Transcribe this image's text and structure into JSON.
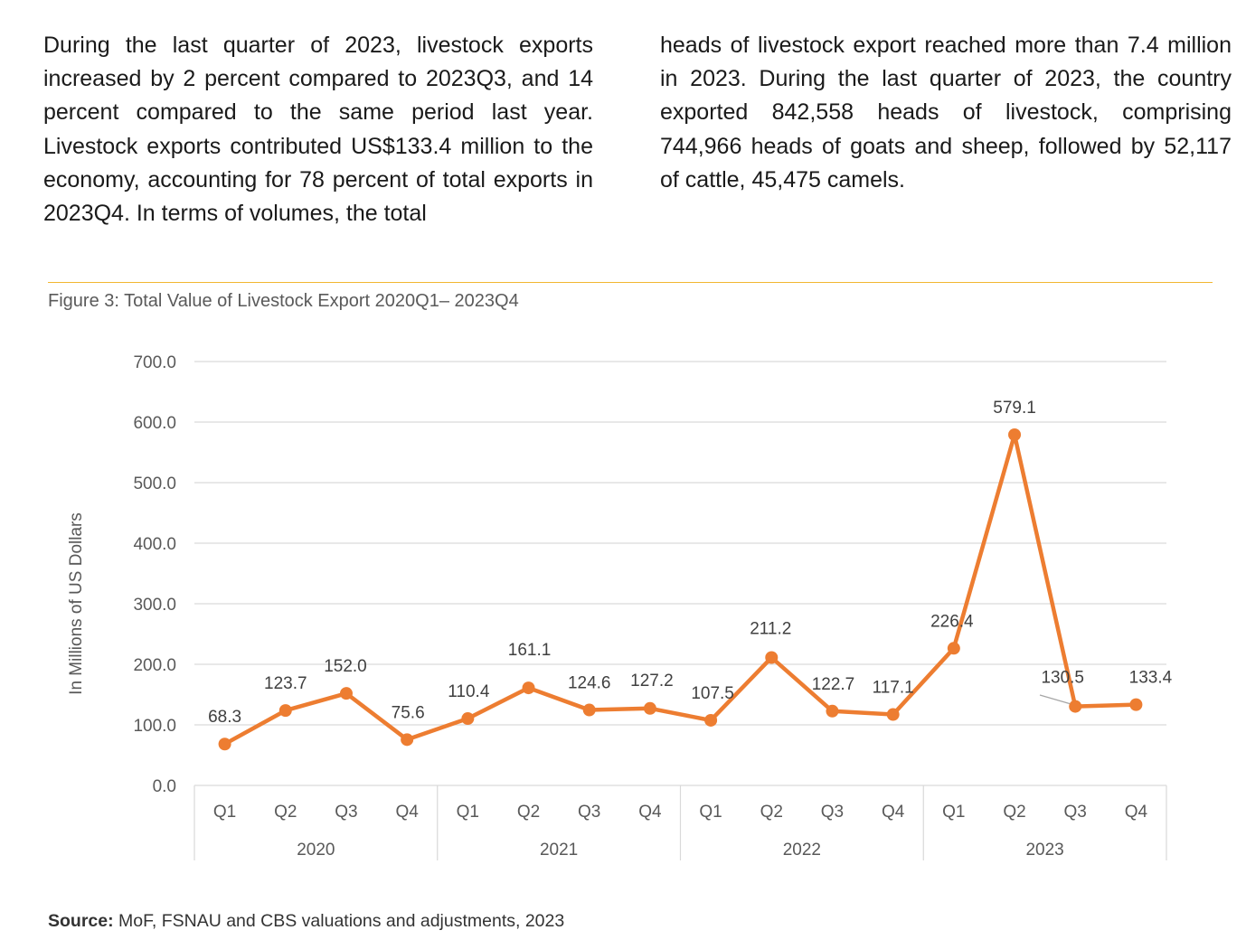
{
  "text": {
    "left_paragraph": "During the last quarter of 2023, livestock exports increased by 2 percent compared to 2023Q3, and 14 percent compared to the same period last year. Livestock exports contributed US$133.4 million to the economy, accounting for 78 percent of total exports in 2023Q4. In terms of volumes, the total",
    "right_paragraph": "heads of livestock export reached more than 7.4 million in 2023. During the last quarter of 2023, the country exported 842,558 heads of livestock, comprising 744,966 heads of goats and sheep, followed by 52,117 of cattle, 45,475 camels."
  },
  "figure": {
    "caption": "Figure 3: Total Value of Livestock Export 2020Q1– 2023Q4"
  },
  "source": {
    "label": "Source:",
    "text": "MoF, FSNAU and CBS valuations and adjustments, 2023"
  },
  "colors": {
    "line": "#ed7d31",
    "grid": "#d9d9d9",
    "rule": "#f2b731"
  },
  "chart_data": {
    "type": "line",
    "title": "Figure 3: Total Value of Livestock Export 2020Q1– 2023Q4",
    "xlabel": "",
    "ylabel": "In Millions of US Dollars",
    "ylim": [
      0,
      700
    ],
    "yticks": [
      "0.0",
      "100.0",
      "200.0",
      "300.0",
      "400.0",
      "500.0",
      "600.0",
      "700.0"
    ],
    "grid": true,
    "groups": [
      {
        "year": "2020",
        "quarters": [
          "Q1",
          "Q2",
          "Q3",
          "Q4"
        ]
      },
      {
        "year": "2021",
        "quarters": [
          "Q1",
          "Q2",
          "Q3",
          "Q4"
        ]
      },
      {
        "year": "2022",
        "quarters": [
          "Q1",
          "Q2",
          "Q3",
          "Q4"
        ]
      },
      {
        "year": "2023",
        "quarters": [
          "Q1",
          "Q2",
          "Q3",
          "Q4"
        ]
      }
    ],
    "series": [
      {
        "name": "Total Value of Livestock Export",
        "values": [
          68.3,
          123.7,
          152.0,
          75.6,
          110.4,
          161.1,
          124.6,
          127.2,
          107.5,
          211.2,
          122.7,
          117.1,
          226.4,
          579.1,
          130.5,
          133.4
        ],
        "labels": [
          "68.3",
          "123.7",
          "152.0",
          "75.6",
          "110.4",
          "161.1",
          "124.6",
          "127.2",
          "107.5",
          "211.2",
          "122.7",
          "117.1",
          "226.4",
          "579.1",
          "130.5",
          "133.4"
        ]
      }
    ]
  }
}
